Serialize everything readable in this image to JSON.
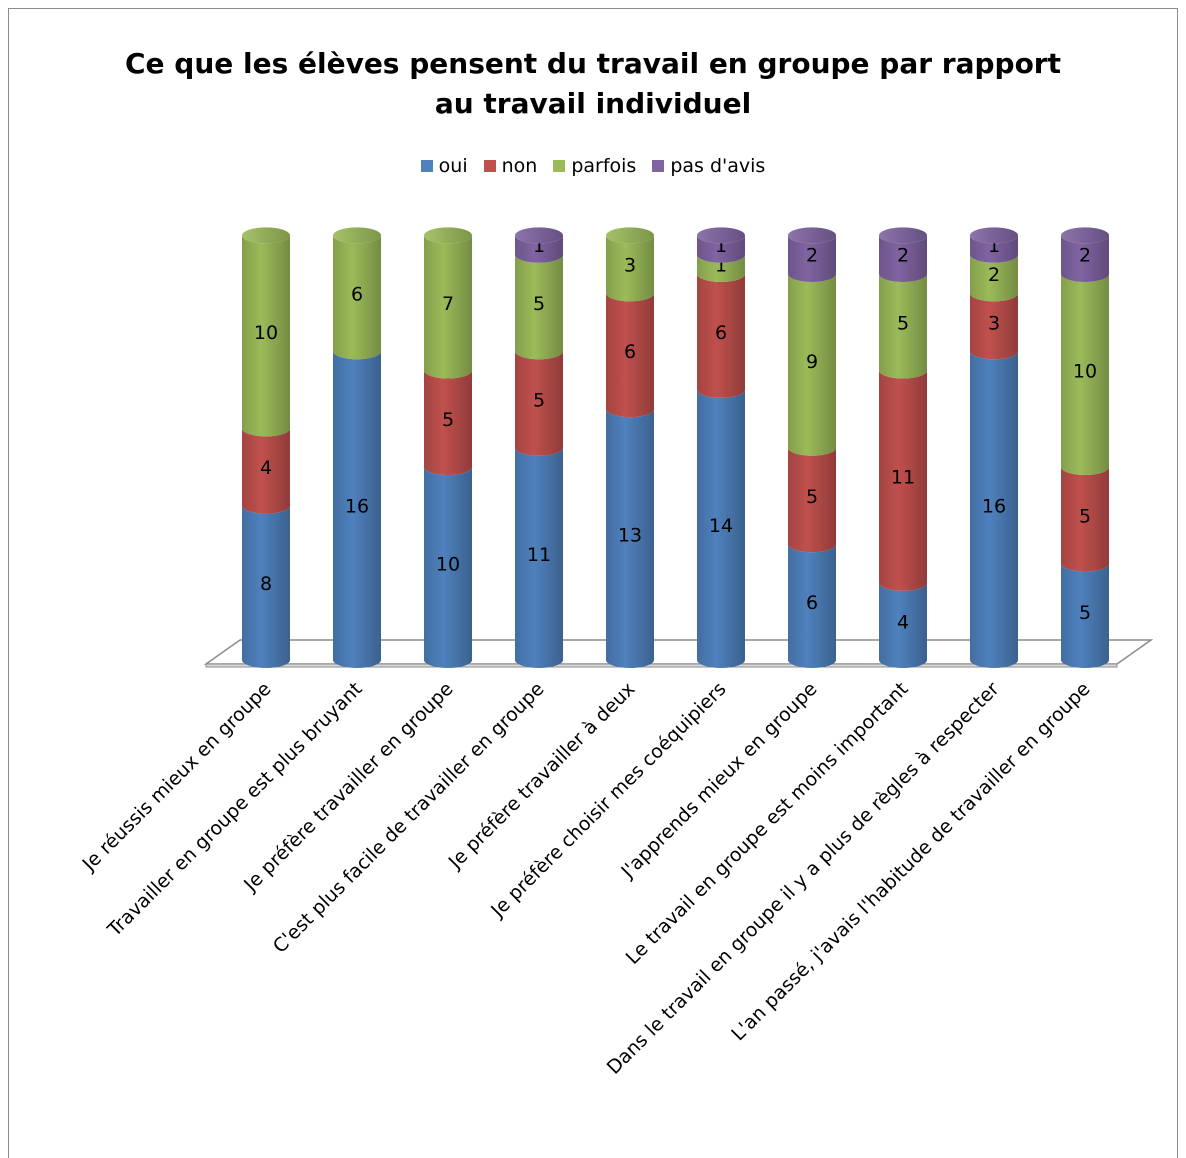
{
  "chart_data": {
    "type": "bar",
    "stacked": true,
    "style": "3d-cylinder",
    "title_lines": [
      "Ce que les élèves pensent du travail en groupe par rapport",
      "au travail individuel"
    ],
    "legend_position": "top",
    "categories": [
      "Je réussis mieux en groupe",
      "Travailler en groupe est plus bruyant",
      "Je préfère travailler en groupe",
      "C'est plus facile de travailler en groupe",
      "Je préfère travailler à deux",
      "Je préfère choisir mes coéquipiers",
      "J'apprends mieux en groupe",
      "Le travail en groupe est moins important",
      "Dans le travail en groupe il y a plus de règles à respecter",
      "L'an passé, j'avais l'habitude de travailler en groupe"
    ],
    "series": [
      {
        "name": "oui",
        "color": "#4f81bd",
        "values": [
          8,
          16,
          10,
          11,
          13,
          14,
          6,
          4,
          16,
          5
        ]
      },
      {
        "name": "non",
        "color": "#c0504d",
        "values": [
          4,
          0,
          5,
          5,
          6,
          6,
          5,
          11,
          3,
          5
        ]
      },
      {
        "name": "parfois",
        "color": "#9bbb59",
        "values": [
          10,
          6,
          7,
          5,
          3,
          1,
          9,
          5,
          2,
          10
        ]
      },
      {
        "name": "pas d'avis",
        "color": "#8064a2",
        "values": [
          0,
          0,
          0,
          1,
          0,
          1,
          2,
          2,
          1,
          2
        ]
      }
    ],
    "ylim": [
      0,
      22
    ],
    "grid": false
  }
}
